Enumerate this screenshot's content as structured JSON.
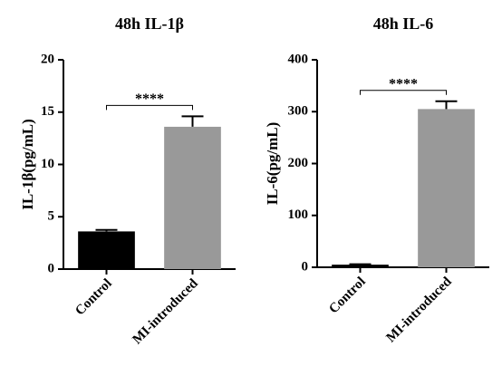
{
  "chart_data": [
    {
      "type": "bar",
      "title": "48h IL-1β",
      "y_label": "IL-1β(pg/mL)",
      "categories": [
        "Control",
        "MI-introduced"
      ],
      "values": [
        3.6,
        13.6
      ],
      "errors": [
        0.15,
        1.0
      ],
      "colors": [
        "#000000",
        "#999999"
      ],
      "ylim": [
        0,
        20
      ],
      "yticks": [
        0,
        5,
        10,
        15,
        20
      ],
      "annotation": "****"
    },
    {
      "type": "bar",
      "title": "48h IL-6",
      "y_label": "IL-6(pg/mL)",
      "categories": [
        "Control",
        "MI-introduced"
      ],
      "values": [
        5,
        305
      ],
      "errors": [
        1,
        15
      ],
      "colors": [
        "#000000",
        "#999999"
      ],
      "ylim": [
        0,
        400
      ],
      "yticks": [
        0,
        100,
        200,
        300,
        400
      ],
      "annotation": "****"
    }
  ]
}
